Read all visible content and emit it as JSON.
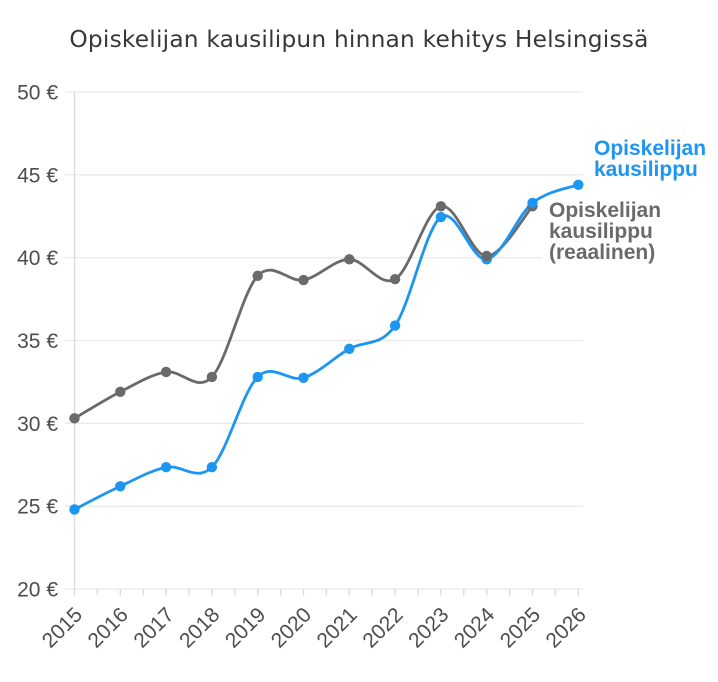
{
  "title": "Opiskelijan kausilipun hinnan kehitys Helsingissä",
  "chart_data": {
    "type": "line",
    "categories": [
      "2015",
      "2016",
      "2017",
      "2018",
      "2019",
      "2020",
      "2021",
      "2022",
      "2023",
      "2024",
      "2025",
      "2026"
    ],
    "y_ticks": [
      "50 €",
      "45 €",
      "40 €",
      "35 €",
      "30 €",
      "25 €",
      "20 €"
    ],
    "y_tick_values": [
      50,
      45,
      40,
      35,
      30,
      25,
      20
    ],
    "ylim": [
      20,
      50
    ],
    "grid": "horizontal",
    "smoothing": "spline",
    "x_label_rotation": -45,
    "series": [
      {
        "name": "Opiskelijan kausilippu",
        "label": "Opiskelijan\nkausilippu",
        "color": "#1d95f2",
        "values": [
          24.8,
          26.2,
          27.35,
          27.35,
          32.8,
          32.75,
          34.5,
          35.9,
          42.45,
          39.9,
          43.3,
          44.4
        ]
      },
      {
        "name": "Opiskelijan kausilippu (reaalinen)",
        "label": "Opiskelijan\nkausilippu\n(reaalinen)",
        "color": "#6a6a6a",
        "values": [
          30.3,
          31.9,
          33.1,
          32.8,
          38.9,
          38.65,
          39.9,
          38.7,
          43.1,
          40.1,
          43.1,
          null
        ]
      }
    ]
  },
  "colors": {
    "background": "#ffffff",
    "grid": "#e9e9e9",
    "axis": "#d9d9d9",
    "tick_label": "#4d4d4d",
    "title": "#383838"
  }
}
